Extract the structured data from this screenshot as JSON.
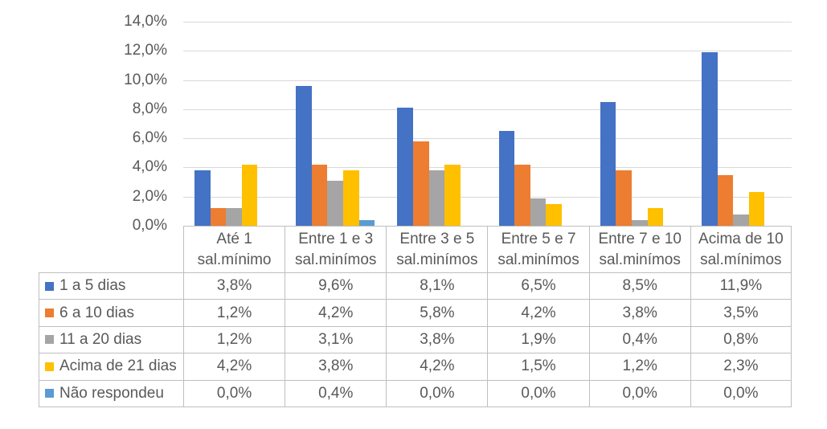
{
  "colors": {
    "text": "#595959",
    "grid": "#d9d9d9",
    "table_border": "#bfbfbf",
    "background": "#ffffff"
  },
  "chart_data": {
    "type": "bar",
    "title": "",
    "xlabel": "",
    "ylabel": "",
    "grid": true,
    "data_table_shown": true,
    "legend_position": "data-table-left-column",
    "ylim": [
      0,
      14
    ],
    "ytick_step": 2,
    "ytick_labels": [
      "0,0%",
      "2,0%",
      "4,0%",
      "6,0%",
      "8,0%",
      "10,0%",
      "12,0%",
      "14,0%"
    ],
    "categories": [
      [
        "Até 1",
        "sal.mínimo"
      ],
      [
        "Entre 1 e 3",
        "sal.minímos"
      ],
      [
        "Entre 3 e 5",
        "sal.minímos"
      ],
      [
        "Entre 5 e 7",
        "sal.minímos"
      ],
      [
        "Entre 7 e 10",
        "sal.minímos"
      ],
      [
        "Acima de 10",
        "sal.mínimos"
      ]
    ],
    "series": [
      {
        "name": "1 a 5 dias",
        "color": "#4472C4",
        "values": [
          3.8,
          9.6,
          8.1,
          6.5,
          8.5,
          11.9
        ],
        "display": [
          "3,8%",
          "9,6%",
          "8,1%",
          "6,5%",
          "8,5%",
          "11,9%"
        ]
      },
      {
        "name": "6 a 10 dias",
        "color": "#ED7D31",
        "values": [
          1.2,
          4.2,
          5.8,
          4.2,
          3.8,
          3.5
        ],
        "display": [
          "1,2%",
          "4,2%",
          "5,8%",
          "4,2%",
          "3,8%",
          "3,5%"
        ]
      },
      {
        "name": "11 a 20 dias",
        "color": "#A5A5A5",
        "values": [
          1.2,
          3.1,
          3.8,
          1.9,
          0.4,
          0.8
        ],
        "display": [
          "1,2%",
          "3,1%",
          "3,8%",
          "1,9%",
          "0,4%",
          "0,8%"
        ]
      },
      {
        "name": "Acima de 21 dias",
        "color": "#FFC000",
        "values": [
          4.2,
          3.8,
          4.2,
          1.5,
          1.2,
          2.3
        ],
        "display": [
          "4,2%",
          "3,8%",
          "4,2%",
          "1,5%",
          "1,2%",
          "2,3%"
        ]
      },
      {
        "name": "Não respondeu",
        "color": "#5B9BD5",
        "values": [
          0.0,
          0.4,
          0.0,
          0.0,
          0.0,
          0.0
        ],
        "display": [
          "0,0%",
          "0,4%",
          "0,0%",
          "0,0%",
          "0,0%",
          "0,0%"
        ]
      }
    ]
  }
}
